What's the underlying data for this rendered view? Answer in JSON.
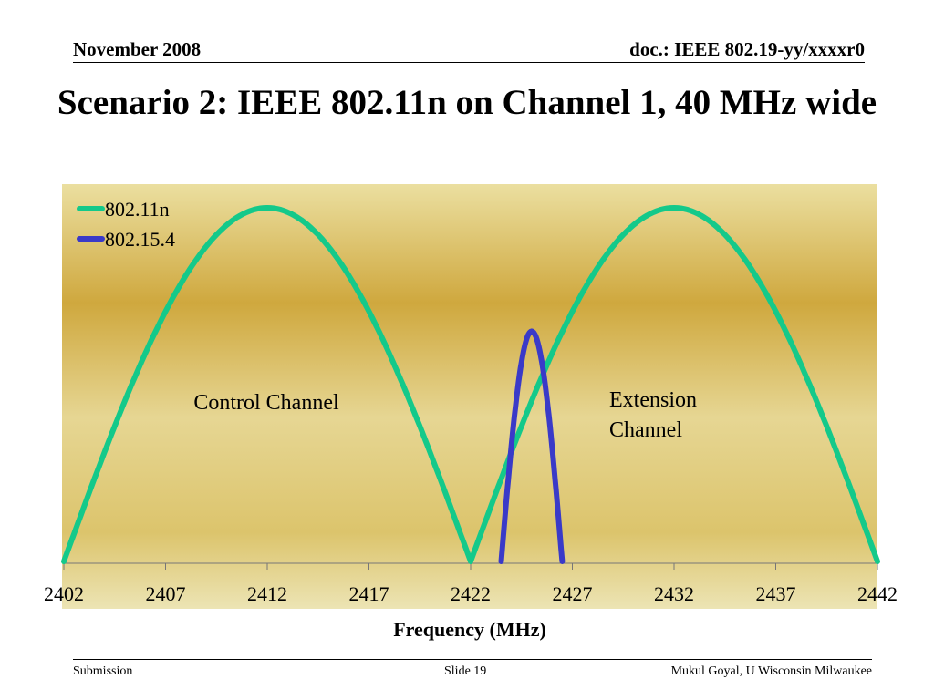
{
  "header": {
    "date": "November 2008",
    "doc_id": "doc.: IEEE 802.19-yy/xxxxr0"
  },
  "slide": {
    "title": "Scenario 2: IEEE 802.11n on Channel 1, 40 MHz wide"
  },
  "chart_data": {
    "type": "line",
    "xlabel": "Frequency (MHz)",
    "ylabel": "",
    "xlim": [
      2402,
      2442
    ],
    "ylim": [
      0,
      1
    ],
    "x_ticks": [
      2402,
      2407,
      2412,
      2417,
      2422,
      2427,
      2432,
      2437,
      2442
    ],
    "grid": false,
    "legend_position": "top-left",
    "series": [
      {
        "name": "802.11n",
        "color": "#14c98a",
        "x": [
          2402,
          2404,
          2406,
          2408,
          2410,
          2412,
          2414,
          2416,
          2418,
          2420,
          2422,
          2424,
          2426,
          2428,
          2430,
          2432,
          2434,
          2436,
          2438,
          2440,
          2442
        ],
        "y": [
          0,
          0.309,
          0.588,
          0.809,
          0.951,
          1.0,
          0.951,
          0.809,
          0.588,
          0.309,
          0,
          0.309,
          0.588,
          0.809,
          0.951,
          1.0,
          0.951,
          0.809,
          0.588,
          0.309,
          0
        ]
      },
      {
        "name": "802.15.4",
        "color": "#3a3ac8",
        "x": [
          2423.5,
          2423.8,
          2424.1,
          2424.4,
          2424.7,
          2425.0,
          2425.3,
          2425.6,
          2425.9,
          2426.2,
          2426.5
        ],
        "y": [
          0,
          0.201,
          0.383,
          0.527,
          0.619,
          0.651,
          0.619,
          0.527,
          0.383,
          0.201,
          0
        ]
      }
    ],
    "annotations": [
      {
        "text": "Control Channel",
        "x": 2412,
        "y": 0.45
      },
      {
        "text": "Extension Channel",
        "x": 2432,
        "y": 0.45
      }
    ]
  },
  "footer": {
    "left": "Submission",
    "center": "Slide 19",
    "right": "Mukul Goyal, U Wisconsin Milwaukee"
  }
}
